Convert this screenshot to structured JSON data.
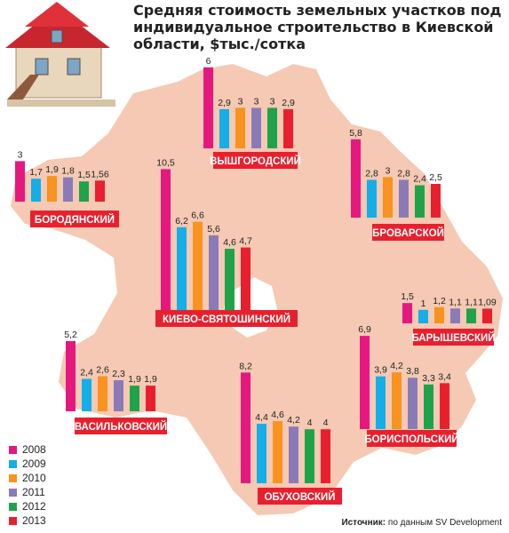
{
  "title": "Средняя стоимость земельных участков под индивидуальное строительство в Киевской области, $тыс./сотка",
  "source_label": "Источник:",
  "source_text": "по данным SV Development",
  "colors": {
    "map": "#f5c9b3",
    "label_bg": "#e8202e",
    "series": [
      "#e5187f",
      "#14aee8",
      "#f7931e",
      "#8a7bb8",
      "#1fa34a",
      "#e8202e"
    ]
  },
  "chart_data": {
    "type": "bar",
    "series_names": [
      "2008",
      "2009",
      "2010",
      "2011",
      "2012",
      "2013"
    ],
    "districts": [
      {
        "name": "БОРОДЯНСКИЙ",
        "values": [
          3,
          1.7,
          1.9,
          1.8,
          1.5,
          1.56
        ],
        "labels": [
          "3",
          "1,7",
          "1,9",
          "1,8",
          "1,5",
          "1,56"
        ]
      },
      {
        "name": "ВЫШГОРОДСКИЙ",
        "values": [
          6,
          2.9,
          3,
          3,
          3,
          2.9
        ],
        "labels": [
          "6",
          "2,9",
          "3",
          "3",
          "3",
          "2,9"
        ]
      },
      {
        "name": "БРОВАРСКОЙ",
        "values": [
          5.8,
          2.8,
          3,
          2.8,
          2.4,
          2.5
        ],
        "labels": [
          "5,8",
          "2,8",
          "3",
          "2,8",
          "2,4",
          "2,5"
        ]
      },
      {
        "name": "КИЕВО-СВЯТОШИНСКИЙ",
        "values": [
          10.5,
          6.2,
          6.6,
          5.6,
          4.6,
          4.7
        ],
        "labels": [
          "10,5",
          "6,2",
          "6,6",
          "5,6",
          "4,6",
          "4,7"
        ]
      },
      {
        "name": "БАРЫШЕВСКИЙ",
        "values": [
          1.5,
          1,
          1.2,
          1.1,
          1.1,
          1.09
        ],
        "labels": [
          "1,5",
          "1",
          "1,2",
          "1,1",
          "1,1",
          "1,09"
        ]
      },
      {
        "name": "ВАСИЛЬКОВСКИЙ",
        "values": [
          5.2,
          2.4,
          2.6,
          2.3,
          1.9,
          1.9
        ],
        "labels": [
          "5,2",
          "2,4",
          "2,6",
          "2,3",
          "1,9",
          "1,9"
        ]
      },
      {
        "name": "ОБУХОВСКИЙ",
        "values": [
          8.2,
          4.4,
          4.6,
          4.2,
          4,
          4
        ],
        "labels": [
          "8,2",
          "4,4",
          "4,6",
          "4,2",
          "4",
          "4"
        ]
      },
      {
        "name": "БОРИСПОЛЬСКИЙ",
        "values": [
          6.9,
          3.9,
          4.2,
          3.8,
          3.3,
          3.4
        ],
        "labels": [
          "6,9",
          "3,9",
          "4,2",
          "3,8",
          "3,3",
          "3,4"
        ]
      }
    ]
  }
}
